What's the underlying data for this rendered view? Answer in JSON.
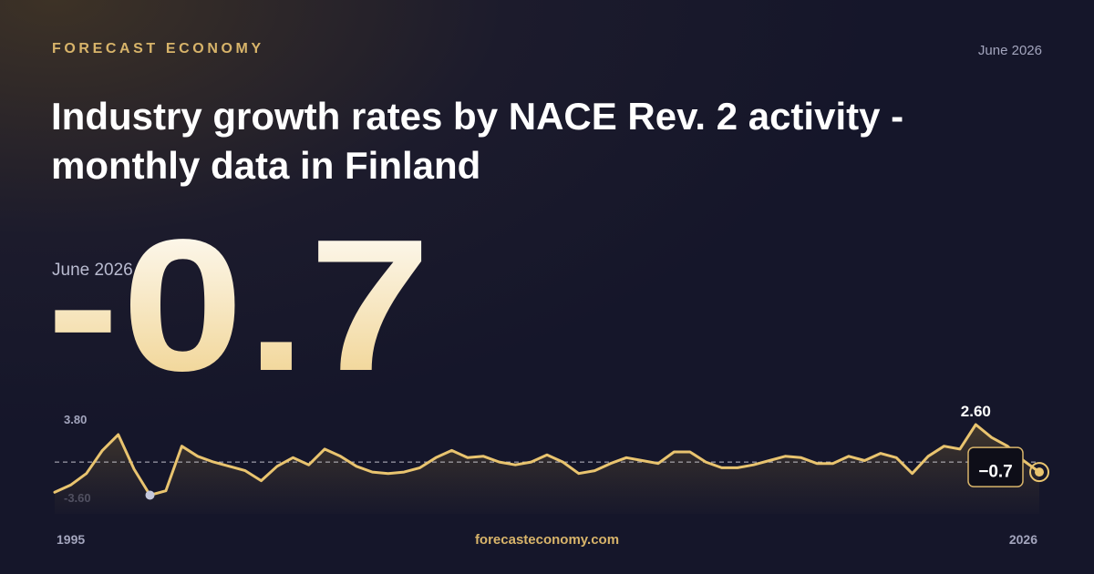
{
  "brand": "FORECAST ECONOMY",
  "date": "June 2026",
  "title_lines": [
    "Industry growth rates by NACE Rev. 2 activity -",
    "monthly data in Finland"
  ],
  "headline": {
    "label": "June 2026",
    "value": "-0.7"
  },
  "source": "forecasteconomy.com",
  "chart_data": {
    "type": "line",
    "color": "#e9c46f",
    "grid": false,
    "categories": [
      "1995",
      null,
      null,
      null,
      null,
      null,
      null,
      null,
      null,
      null,
      null,
      null,
      null,
      null,
      null,
      null,
      null,
      null,
      null,
      null,
      null,
      null,
      null,
      null,
      null,
      null,
      null,
      null,
      null,
      null,
      null,
      null,
      null,
      null,
      null,
      null,
      null,
      null,
      null,
      null,
      null,
      null,
      null,
      null,
      null,
      null,
      null,
      null,
      null,
      null,
      null,
      null,
      null,
      null,
      null,
      null,
      null,
      null,
      null,
      null,
      null,
      null,
      "2026"
    ],
    "values": [
      -2.1,
      -1.6,
      -0.8,
      0.8,
      1.9,
      -0.5,
      -2.3,
      -2.0,
      1.1,
      0.4,
      0,
      -0.3,
      -0.6,
      -1.3,
      -0.3,
      0.3,
      -0.2,
      0.9,
      0.4,
      -0.3,
      -0.7,
      -0.8,
      -0.7,
      -0.4,
      0.3,
      0.8,
      0.3,
      0.4,
      0,
      -0.2,
      0,
      0.5,
      0,
      -0.8,
      -0.6,
      -0.1,
      0.3,
      0.1,
      -0.1,
      0.7,
      0.7,
      0,
      -0.4,
      -0.4,
      -0.2,
      0.1,
      0.4,
      0.3,
      -0.1,
      -0.1,
      0.4,
      0.1,
      0.6,
      0.3,
      -0.8,
      0.4,
      1.1,
      0.9,
      2.6,
      1.7,
      1.1,
      0.1,
      -0.7
    ],
    "value_labels": [
      null,
      null,
      null,
      null,
      null,
      null,
      null,
      null,
      null,
      null,
      null,
      null,
      null,
      null,
      null,
      null,
      null,
      null,
      null,
      null,
      null,
      null,
      null,
      null,
      null,
      null,
      null,
      null,
      null,
      null,
      null,
      null,
      null,
      null,
      null,
      null,
      null,
      null,
      null,
      null,
      null,
      null,
      null,
      null,
      null,
      null,
      null,
      null,
      null,
      null,
      null,
      null,
      null,
      null,
      null,
      null,
      null,
      null,
      "2.60",
      null,
      null,
      null,
      "−0.7"
    ],
    "ylim": [
      -3.6,
      3.8
    ],
    "yticks": [
      {
        "value": 3.8,
        "label": "3.80"
      },
      {
        "value": -3.6,
        "label": "-3.60"
      }
    ]
  }
}
